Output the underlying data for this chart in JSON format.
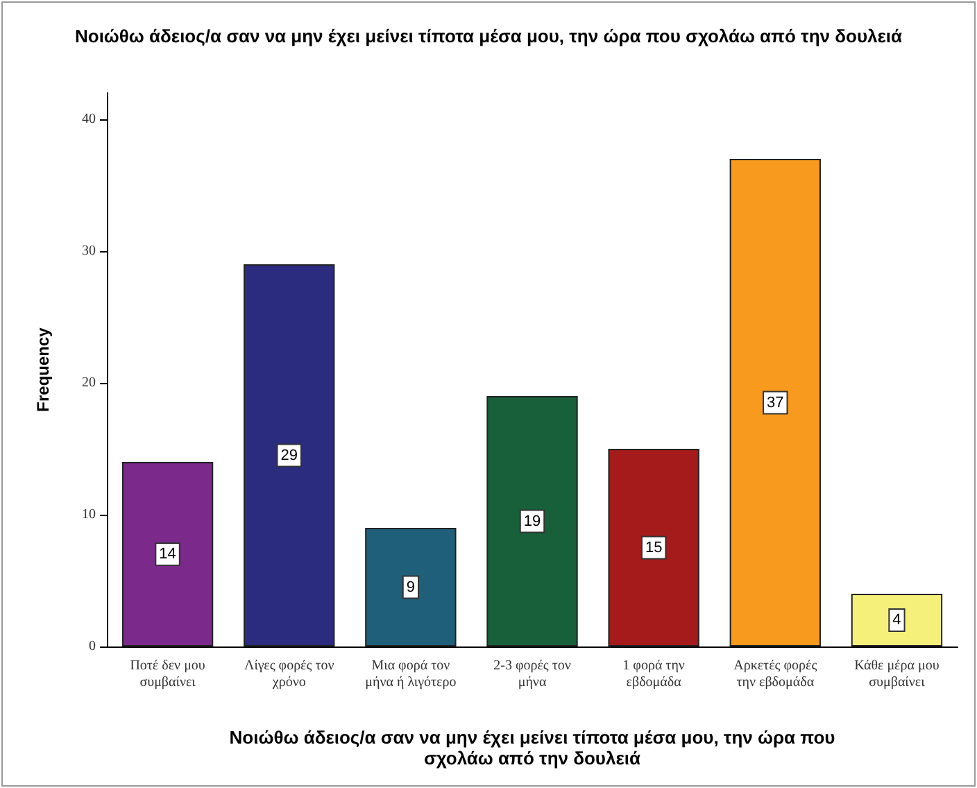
{
  "chart_data": {
    "type": "bar",
    "title": "Νοιώθω άδειος/α σαν να μην έχει μείνει τίποτα μέσα μου, την ώρα που σχολάω από την δουλειά",
    "xlabel": "Νοιώθω άδειος/α σαν να μην έχει μείνει τίποτα μέσα μου, την ώρα που σχολάω από την δουλειά",
    "ylabel": "Frequency",
    "categories": [
      "Ποτέ δεν μου συμβαίνει",
      "Λίγες φορές τον χρόνο",
      "Μια φορά τον μήνα ή λιγότερο",
      "2-3 φορές τον μήνα",
      "1 φορά την εβδομάδα",
      "Αρκετές φορές την εβδομάδα",
      "Κάθε μέρα μου συμβαίνει"
    ],
    "values": [
      14,
      29,
      9,
      19,
      15,
      37,
      4
    ],
    "colors": [
      "#7b2a8c",
      "#2b2b80",
      "#1f5f7a",
      "#17603a",
      "#a51a1a",
      "#f79a1d",
      "#f5f07a"
    ],
    "ylim": [
      0,
      42
    ],
    "yticks": [
      0,
      10,
      20,
      30,
      40
    ],
    "grid": false,
    "data_labels": true
  }
}
